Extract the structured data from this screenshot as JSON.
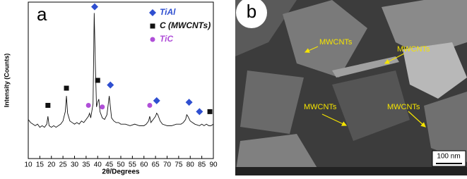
{
  "chart_data": {
    "type": "line",
    "panel_label": "a",
    "xlabel": "2θ/Degrees",
    "ylabel": "Intensity (Counts)",
    "xlim": [
      10,
      90
    ],
    "xticks": [
      10,
      15,
      20,
      25,
      30,
      35,
      40,
      45,
      50,
      55,
      60,
      65,
      70,
      75,
      80,
      85,
      90
    ],
    "ylim": [
      0,
      100
    ],
    "color": "#111111",
    "x": [
      10,
      11,
      12,
      13,
      14,
      15,
      16,
      17,
      18,
      18.5,
      19,
      20,
      21,
      22,
      23,
      24,
      25,
      26,
      26.5,
      27,
      28,
      29,
      30,
      31,
      32,
      33,
      34,
      35,
      36,
      36.5,
      37,
      38,
      38.5,
      39,
      39.5,
      40,
      40.5,
      41,
      42,
      43,
      44,
      44.5,
      45,
      45.5,
      46,
      47,
      48,
      49,
      50,
      52,
      54,
      56,
      58,
      60,
      61,
      62,
      62.5,
      63,
      64,
      65,
      65.5,
      66,
      67,
      68,
      70,
      72,
      74,
      76,
      77,
      78,
      78.5,
      79,
      80,
      82,
      84,
      85,
      86,
      87,
      88,
      89,
      90
    ],
    "values": [
      25,
      23,
      22,
      21,
      22,
      20,
      21,
      20,
      22,
      27,
      21,
      20,
      21,
      20,
      21,
      22,
      24,
      30,
      40,
      29,
      24,
      23,
      22,
      23,
      22,
      24,
      23,
      25,
      27,
      29,
      26,
      35,
      93,
      60,
      33,
      36,
      38,
      30,
      26,
      25,
      28,
      34,
      40,
      33,
      26,
      24,
      23,
      23,
      22,
      22,
      21,
      22,
      21,
      21,
      22,
      24,
      27,
      23,
      25,
      27,
      29,
      28,
      24,
      22,
      21,
      21,
      22,
      22,
      23,
      25,
      28,
      27,
      24,
      22,
      21,
      22,
      21,
      22,
      21,
      21,
      22
    ],
    "markers": [
      {
        "name": "TiAl",
        "color": "#2f4fd0",
        "shape": "diamond",
        "x": [
          38.7,
          45.5,
          65.5,
          79.5,
          84
        ],
        "values": [
          97,
          47,
          37,
          36,
          30
        ]
      },
      {
        "name": "C (MWCNTs)",
        "color": "#111111",
        "shape": "square",
        "x": [
          18.5,
          26.5,
          40,
          88.5
        ],
        "values": [
          34,
          45,
          50,
          30
        ]
      },
      {
        "name": "TiC",
        "color": "#b04fd8",
        "shape": "circle",
        "x": [
          36,
          42,
          62.5
        ],
        "values": [
          34,
          33,
          34
        ]
      }
    ]
  },
  "image_panel": {
    "label": "b",
    "annotations": [
      "MWCNTs",
      "MWCNTs",
      "MWCNTs",
      "MWCNTs"
    ],
    "scale_bar": "100 nm"
  }
}
